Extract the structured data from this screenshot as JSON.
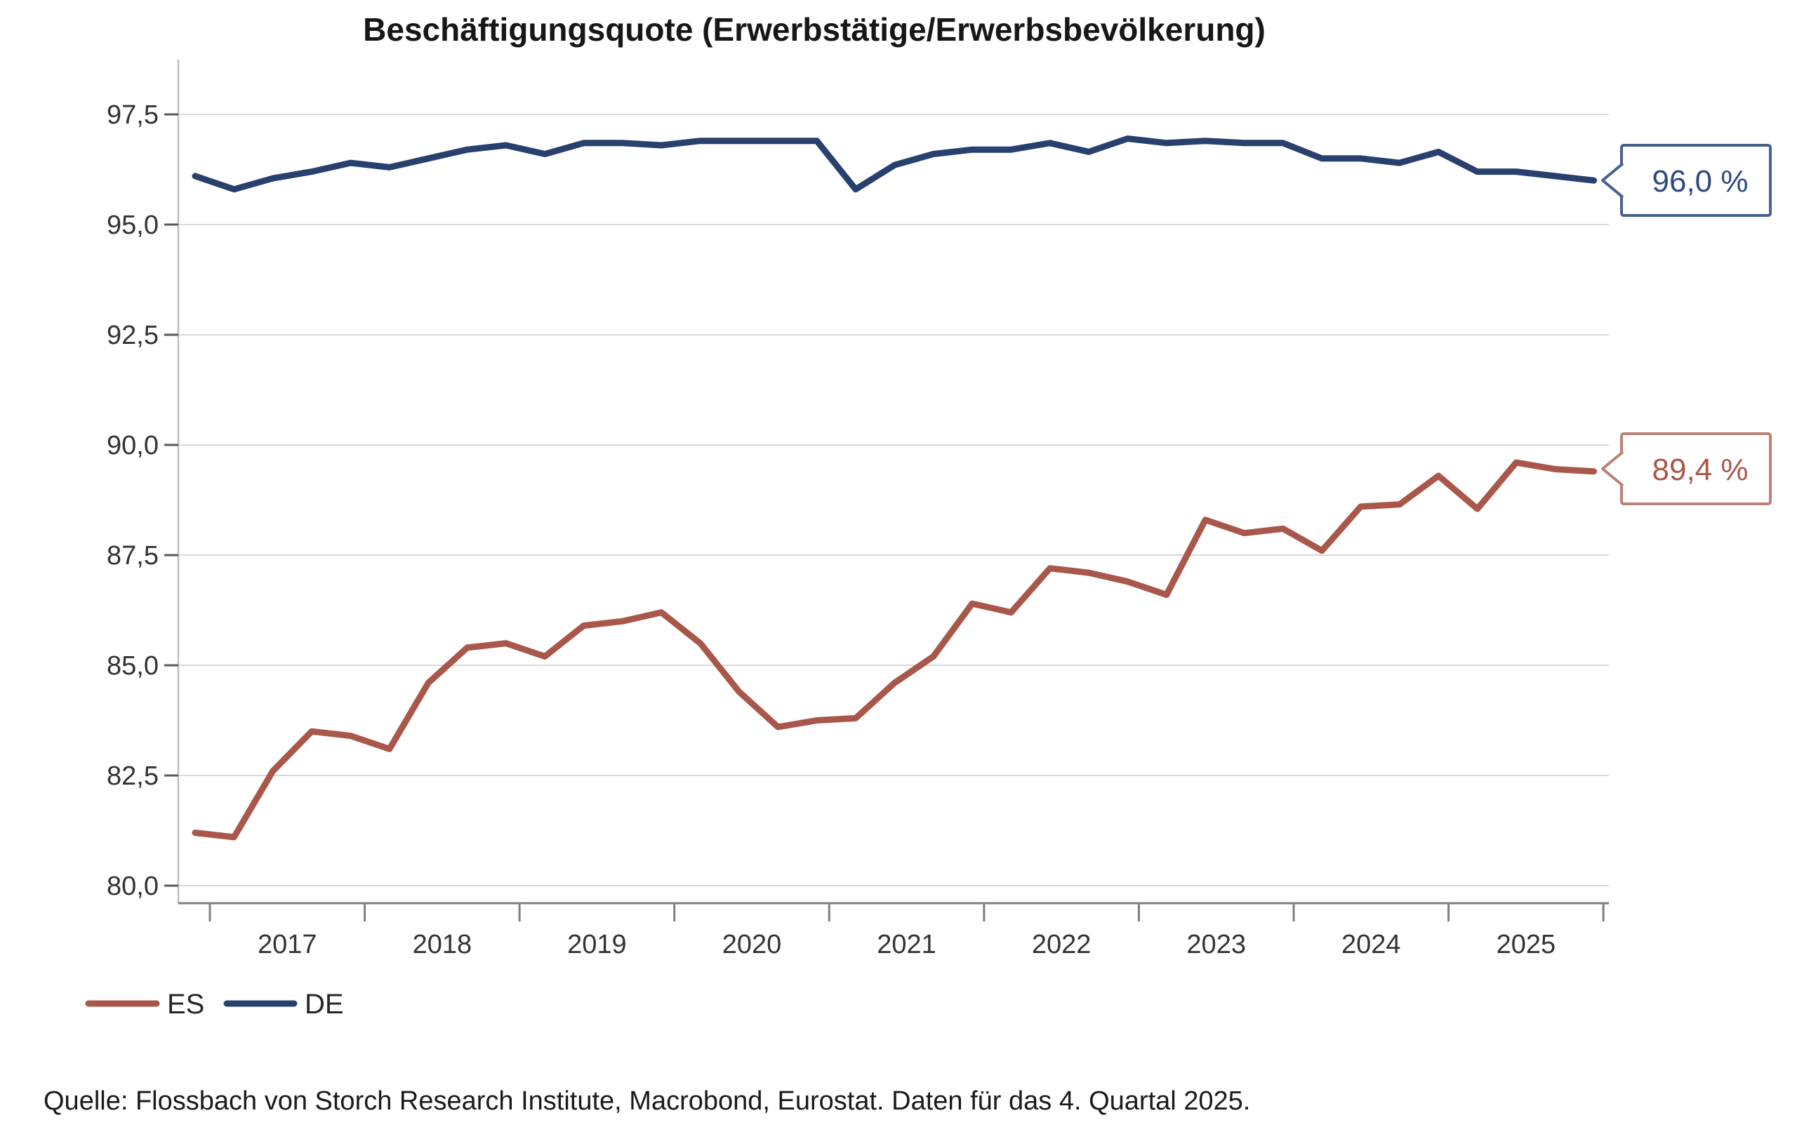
{
  "title": "Beschäftigungsquote (Erwerbstätige/Erwerbsbevölkerung)",
  "source": "Quelle: Flossbach von Storch Research Institute, Macrobond, Eurostat. Daten für das 4. Quartal 2025.",
  "legend": [
    {
      "label": "ES",
      "color": "#a8574a"
    },
    {
      "label": "DE",
      "color": "#27406e"
    }
  ],
  "callouts": [
    {
      "series": "DE",
      "label": "96,0 %",
      "value": 96.0,
      "border_color": "#46618f",
      "text_color": "#2d4a7e"
    },
    {
      "series": "ES",
      "label": "89,4 %",
      "value": 89.4,
      "border_color": "#bc8177",
      "text_color": "#a8574a"
    }
  ],
  "colors": {
    "gridline": "#d9d9d9",
    "y_axis_line": "#bfbfbf",
    "x_axis_line": "#7f7f7f",
    "tick_stub": "#595959",
    "axis_text": "#333333",
    "title_text": "#171717",
    "source_text": "#1a1a1a"
  },
  "chart_data": {
    "type": "line",
    "frequency": "quarterly",
    "x_start": "Q4 2016",
    "x_end": "Q4 2025",
    "title": "Beschäftigungsquote (Erwerbstätige/Erwerbsbevölkerung)",
    "xlabel": "",
    "ylabel": "",
    "ylim": [
      80.0,
      97.5
    ],
    "grid": true,
    "legend_position": "bottom-left",
    "yticks": [
      {
        "value": 97.5,
        "label": "97,5"
      },
      {
        "value": 95.0,
        "label": "95,0"
      },
      {
        "value": 92.5,
        "label": "92,5"
      },
      {
        "value": 90.0,
        "label": "90,0"
      },
      {
        "value": 87.5,
        "label": "87,5"
      },
      {
        "value": 85.0,
        "label": "85,0"
      },
      {
        "value": 82.5,
        "label": "82,5"
      },
      {
        "value": 80.0,
        "label": "80,0"
      }
    ],
    "xtick_year_labels": [
      "2017",
      "2018",
      "2019",
      "2020",
      "2021",
      "2022",
      "2023",
      "2024",
      "2025"
    ],
    "categories": [
      "Q4 2016",
      "Q1 2017",
      "Q2 2017",
      "Q3 2017",
      "Q4 2017",
      "Q1 2018",
      "Q2 2018",
      "Q3 2018",
      "Q4 2018",
      "Q1 2019",
      "Q2 2019",
      "Q3 2019",
      "Q4 2019",
      "Q1 2020",
      "Q2 2020",
      "Q3 2020",
      "Q4 2020",
      "Q1 2021",
      "Q2 2021",
      "Q3 2021",
      "Q4 2021",
      "Q1 2022",
      "Q2 2022",
      "Q3 2022",
      "Q4 2022",
      "Q1 2023",
      "Q2 2023",
      "Q3 2023",
      "Q4 2023",
      "Q1 2024",
      "Q2 2024",
      "Q3 2024",
      "Q4 2024",
      "Q1 2025",
      "Q2 2025",
      "Q3 2025",
      "Q4 2025"
    ],
    "series": [
      {
        "name": "ES",
        "color": "#a8574a",
        "values": [
          81.2,
          81.1,
          82.6,
          83.5,
          83.4,
          83.1,
          84.6,
          85.4,
          85.5,
          85.2,
          85.9,
          86.0,
          86.2,
          85.5,
          84.4,
          83.6,
          83.75,
          83.8,
          84.6,
          85.2,
          86.4,
          86.2,
          87.2,
          87.1,
          86.9,
          86.6,
          88.3,
          88.0,
          88.1,
          87.6,
          88.6,
          88.65,
          89.3,
          88.55,
          89.6,
          89.45,
          89.4
        ]
      },
      {
        "name": "DE",
        "color": "#27406e",
        "values": [
          96.1,
          95.8,
          96.05,
          96.2,
          96.4,
          96.3,
          96.5,
          96.7,
          96.8,
          96.6,
          96.85,
          96.85,
          96.8,
          96.9,
          96.9,
          96.9,
          96.9,
          95.8,
          96.35,
          96.6,
          96.7,
          96.7,
          96.85,
          96.65,
          96.95,
          96.85,
          96.9,
          96.85,
          96.85,
          96.5,
          96.5,
          96.4,
          96.65,
          96.2,
          96.2,
          96.1,
          96.0
        ]
      }
    ]
  }
}
